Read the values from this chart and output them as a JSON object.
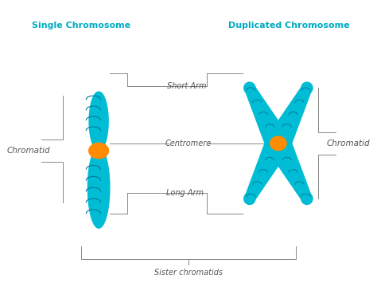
{
  "title_left": "Single Chromosome",
  "title_right": "Duplicated Chromosome",
  "label_chromatid_left": "Chromatid",
  "label_chromatid_right": "Chromatid",
  "label_short_arm": "Short Arm",
  "label_centromere": "Centromere",
  "label_long_arm": "Long Arm",
  "label_sister": "Sister chromatids",
  "chromosome_color": "#00BCD4",
  "centromere_color": "#FF8C00",
  "background_color": "#FFFFFF",
  "text_color_title": "#00ACC1",
  "text_color_label": "#555555",
  "fig_width": 4.74,
  "fig_height": 3.55
}
